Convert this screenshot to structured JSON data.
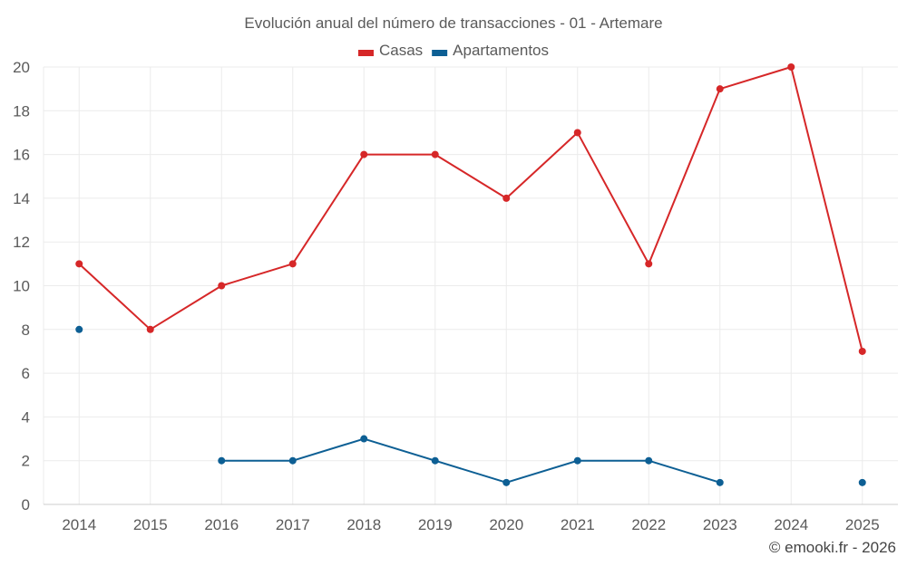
{
  "chart_data": {
    "type": "line",
    "title": "Evolución anual del número de transacciones - 01 - Artemare",
    "xlabel": "",
    "ylabel": "",
    "categories": [
      "2014",
      "2015",
      "2016",
      "2017",
      "2018",
      "2019",
      "2020",
      "2021",
      "2022",
      "2023",
      "2024",
      "2025"
    ],
    "ylim": [
      0,
      20
    ],
    "yticks": [
      0,
      2,
      4,
      6,
      8,
      10,
      12,
      14,
      16,
      18,
      20
    ],
    "grid": true,
    "legend_position": "top-center",
    "series": [
      {
        "name": "Casas",
        "color": "#d62728",
        "values": [
          11,
          8,
          10,
          11,
          16,
          16,
          14,
          17,
          11,
          19,
          20,
          7
        ]
      },
      {
        "name": "Apartamentos",
        "color": "#0d5f94",
        "values": [
          8,
          null,
          2,
          2,
          3,
          2,
          1,
          2,
          2,
          1,
          null,
          1
        ]
      }
    ]
  },
  "credit": "© emooki.fr - 2026"
}
